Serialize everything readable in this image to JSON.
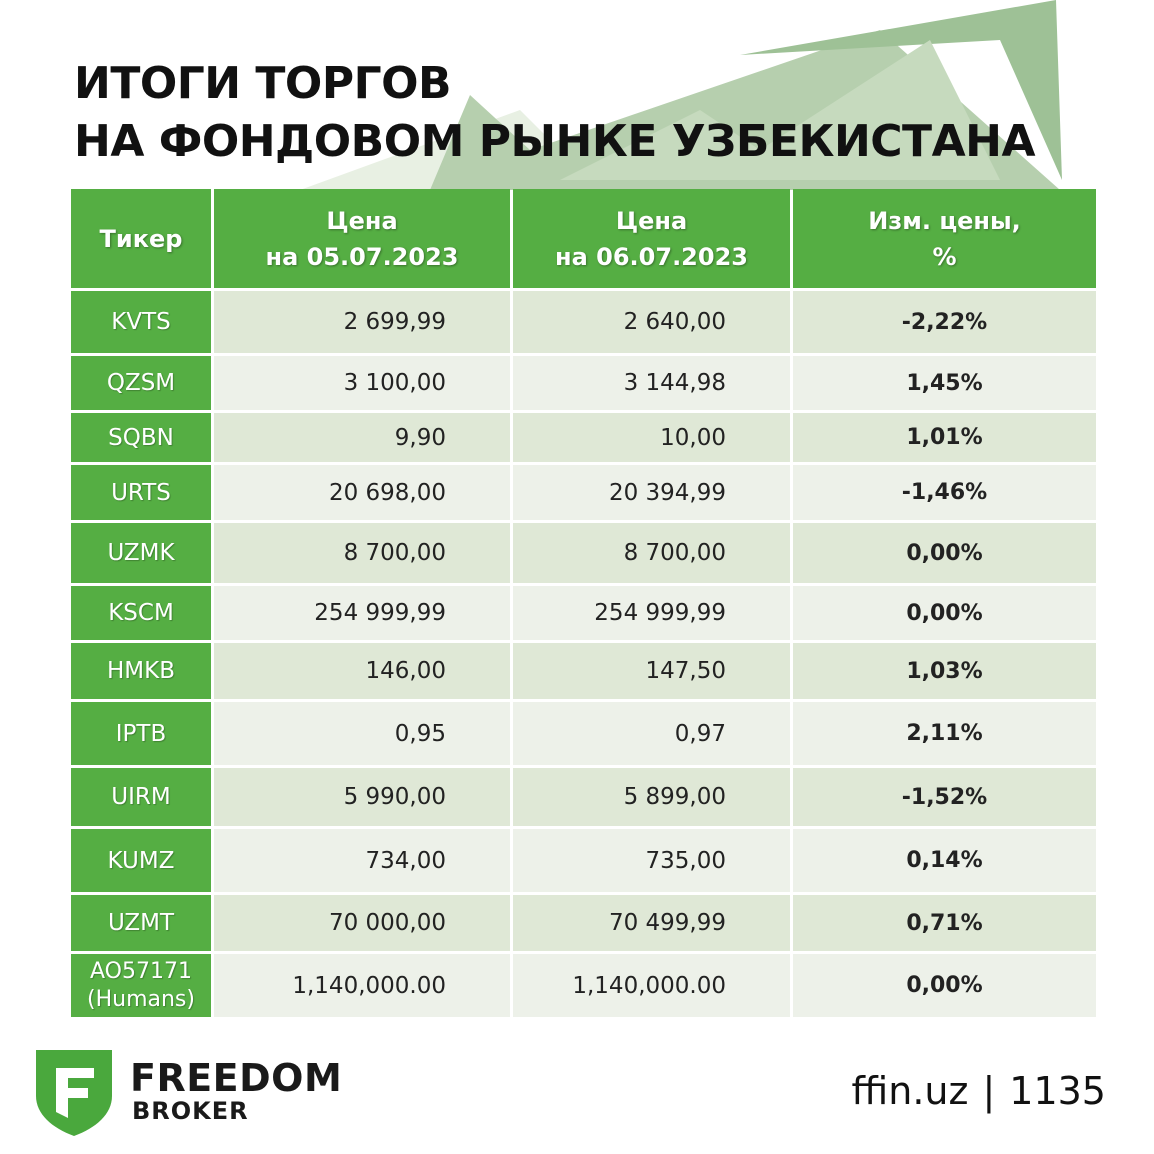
{
  "title": {
    "line1": "ИТОГИ ТОРГОВ",
    "line2": "НА ФОНДОВОМ РЫНКЕ УЗБЕКИСТАНА"
  },
  "table": {
    "headers": {
      "ticker": "Тикер",
      "price1_line1": "Цена",
      "price1_line2": "на 05.07.2023",
      "price2_line1": "Цена",
      "price2_line2": "на 06.07.2023",
      "change_line1": "Изм. цены,",
      "change_line2": "%"
    },
    "rows": [
      {
        "ticker": "KVTS",
        "p1": "2 699,99",
        "p2": "2 640,00",
        "chg": "-2,22%",
        "dir": "neg"
      },
      {
        "ticker": "QZSM",
        "p1": "3 100,00",
        "p2": "3 144,98",
        "chg": "1,45%",
        "dir": "pos"
      },
      {
        "ticker": "SQBN",
        "p1": "9,90",
        "p2": "10,00",
        "chg": "1,01%",
        "dir": "pos"
      },
      {
        "ticker": "URTS",
        "p1": "20 698,00",
        "p2": "20 394,99",
        "chg": "-1,46%",
        "dir": "neg"
      },
      {
        "ticker": "UZMK",
        "p1": "8 700,00",
        "p2": "8 700,00",
        "chg": "0,00%",
        "dir": "zero"
      },
      {
        "ticker": "KSCM",
        "p1": "254 999,99",
        "p2": "254 999,99",
        "chg": "0,00%",
        "dir": "zero"
      },
      {
        "ticker": "HMKB",
        "p1": "146,00",
        "p2": "147,50",
        "chg": "1,03%",
        "dir": "pos"
      },
      {
        "ticker": "IPTB",
        "p1": "0,95",
        "p2": "0,97",
        "chg": "2,11%",
        "dir": "pos"
      },
      {
        "ticker": "UIRM",
        "p1": "5 990,00",
        "p2": "5 899,00",
        "chg": "-1,52%",
        "dir": "neg"
      },
      {
        "ticker": "KUMZ",
        "p1": "734,00",
        "p2": "735,00",
        "chg": "0,14%",
        "dir": "zero"
      },
      {
        "ticker": "UZMT",
        "p1": "70 000,00",
        "p2": "70 499,99",
        "chg": "0,71%",
        "dir": "zero"
      },
      {
        "ticker": "AO57171",
        "ticker_sub": "(Humans)",
        "p1": "1,140,000.00",
        "p2": "1,140,000.00",
        "chg": "0,00%",
        "dir": "zero"
      }
    ]
  },
  "footer": {
    "brand_name": "FREEDOM",
    "brand_sub": "BROKER",
    "site": "ffin.uz",
    "separator": "|",
    "phone": "1135"
  },
  "colors": {
    "header_green": "#55ae43",
    "negative": "#e0101a",
    "positive": "#21a145",
    "neutral": "#9a9a9a",
    "logo_green": "#4aa83d"
  },
  "icons": {
    "background": "upward-arrow-icon",
    "logo": "freedom-shield-logo-icon"
  }
}
